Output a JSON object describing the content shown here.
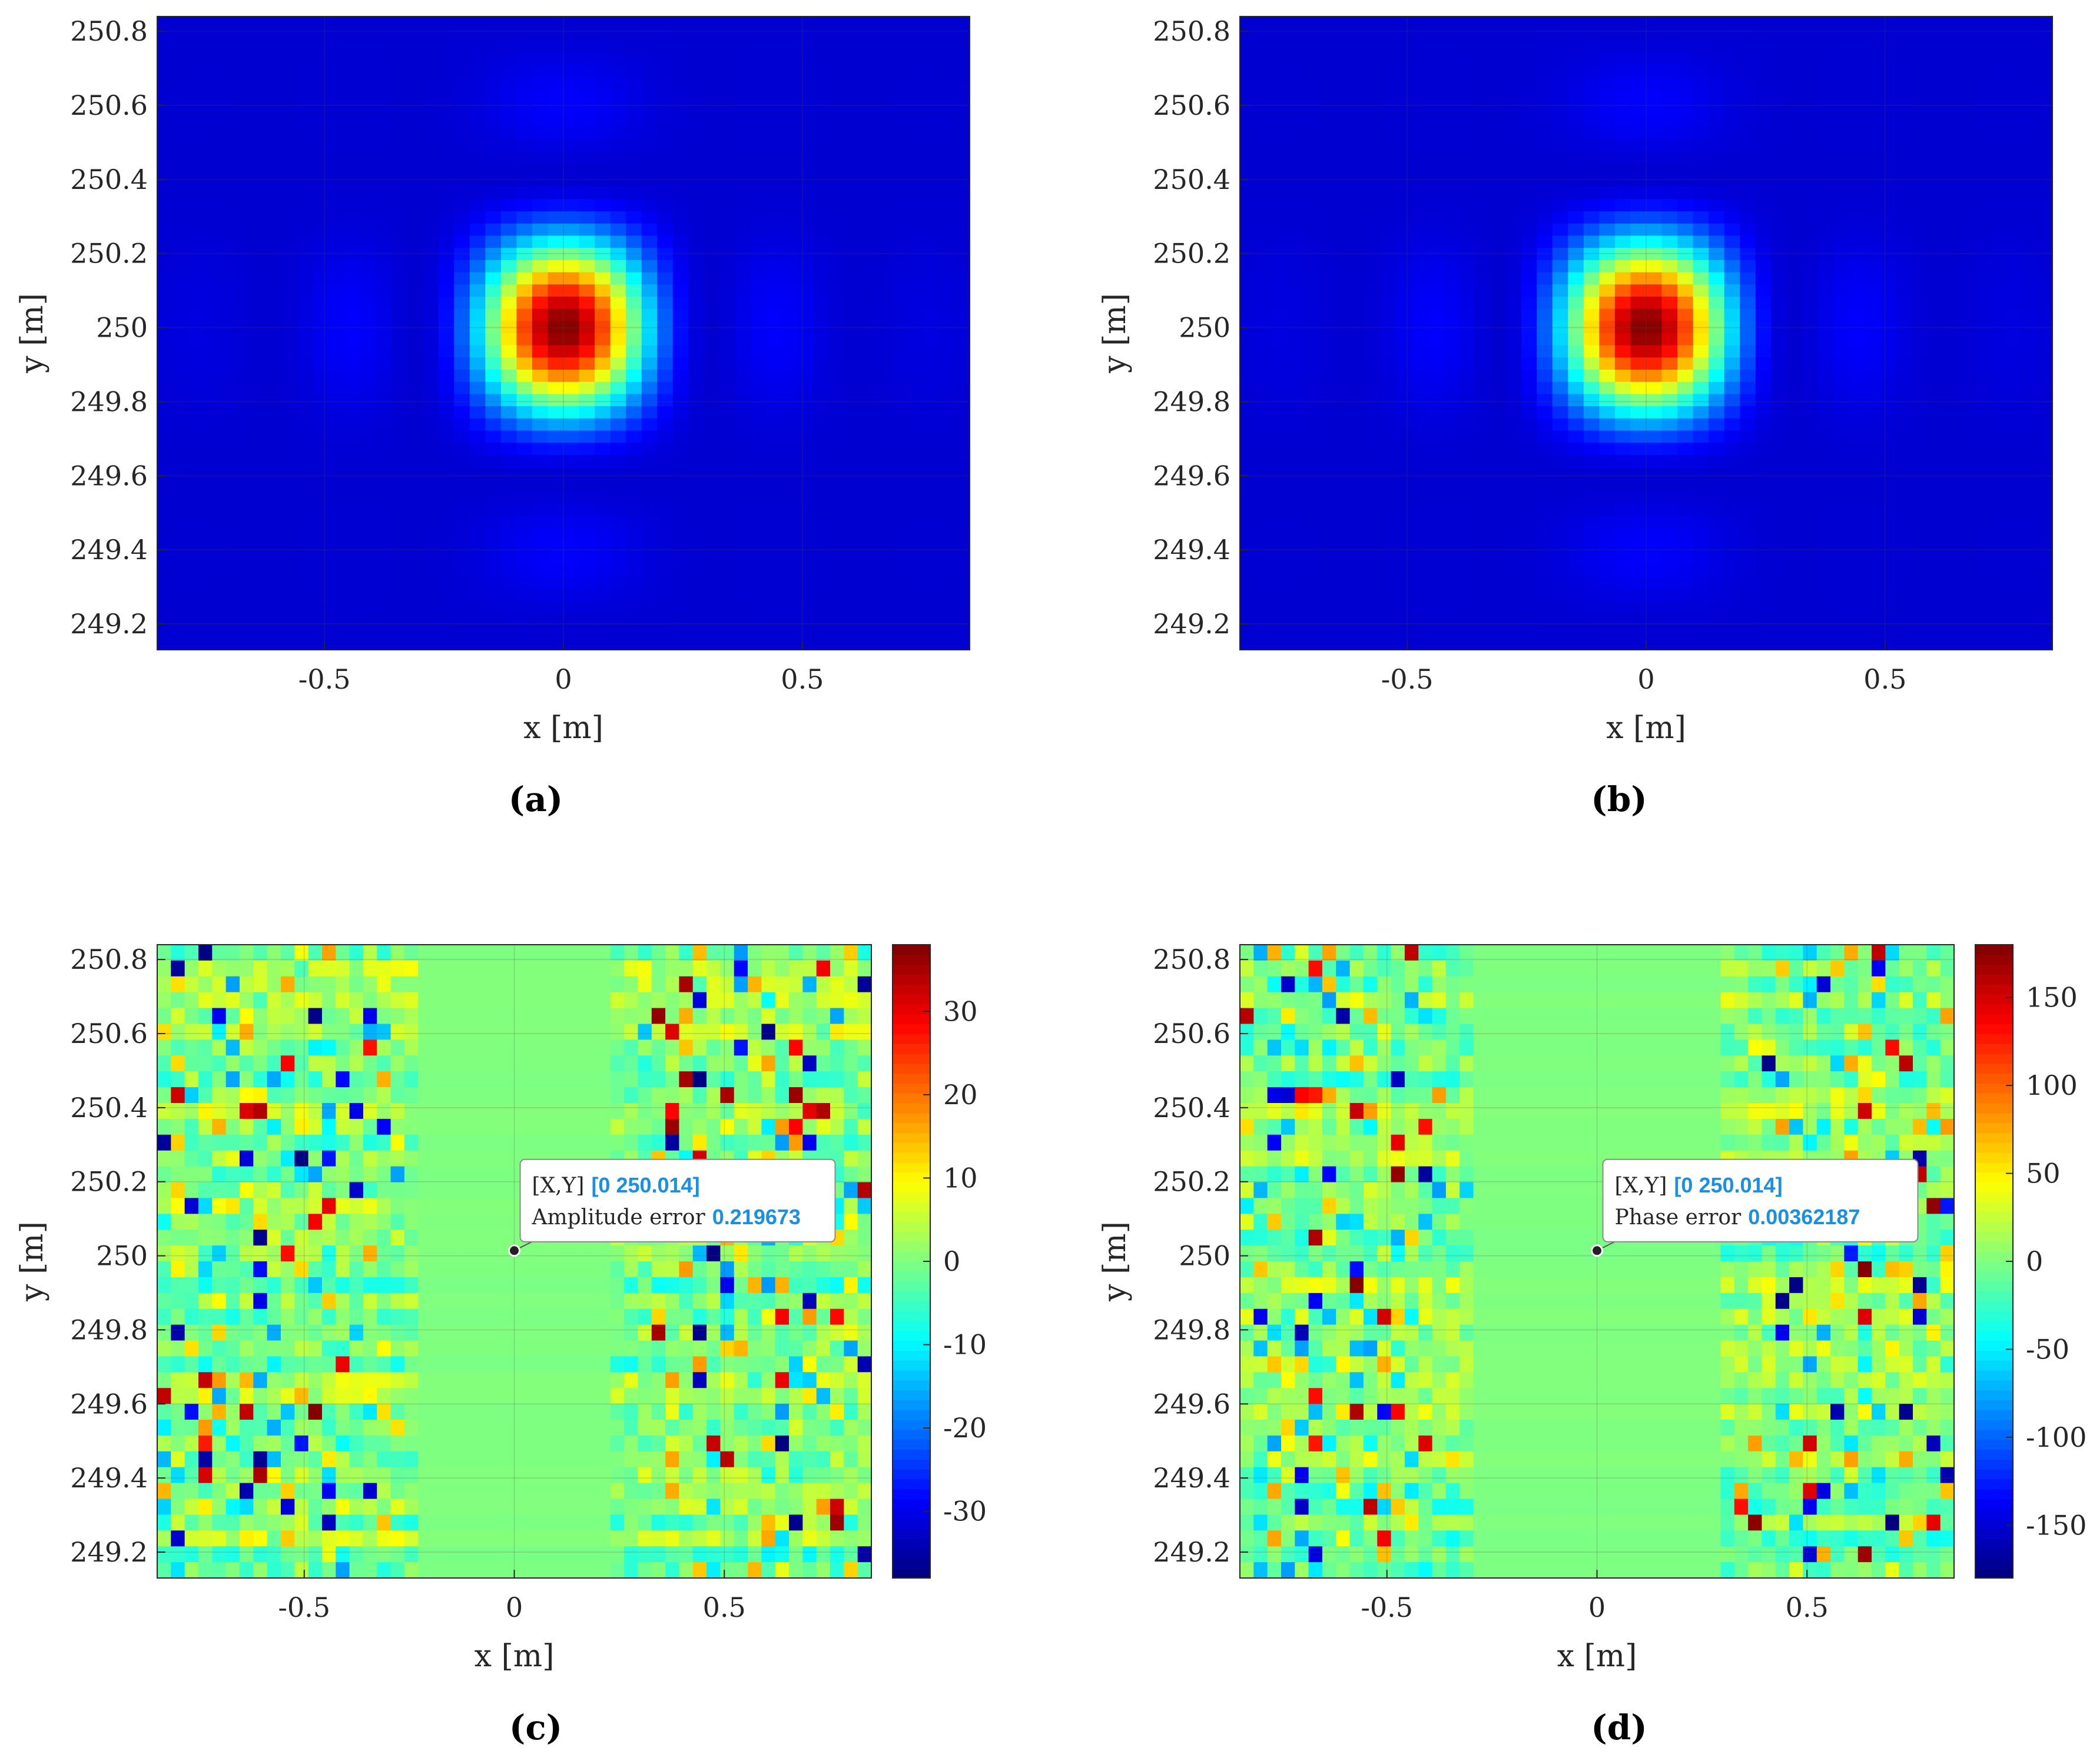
{
  "chart_data": [
    {
      "panel": "a",
      "caption": "(a)",
      "type": "heatmap",
      "xlabel": "x [m]",
      "ylabel": "y [m]",
      "xlim": [
        -0.85,
        0.85
      ],
      "ylim": [
        249.13,
        250.84
      ],
      "xticks": [
        -0.5,
        0,
        0.5
      ],
      "xtick_labels": [
        "-0.5",
        "0",
        "0.5"
      ],
      "yticks": [
        249.2,
        249.4,
        249.6,
        249.8,
        250,
        250.2,
        250.4,
        250.6,
        250.8
      ],
      "ytick_labels": [
        "249.2",
        "249.4",
        "249.6",
        "249.8",
        "250",
        "250.2",
        "250.4",
        "250.6",
        "250.8"
      ],
      "colormap": "jet",
      "field": {
        "kind": "sinc2",
        "center_x": 0,
        "center_y": 250,
        "scale_x": 0.31,
        "scale_y": 0.42
      },
      "grid": {
        "nx": 52,
        "ny": 52
      }
    },
    {
      "panel": "b",
      "caption": "(b)",
      "type": "heatmap",
      "xlabel": "x [m]",
      "ylabel": "y [m]",
      "xlim": [
        -0.85,
        0.85
      ],
      "ylim": [
        249.13,
        250.84
      ],
      "xticks": [
        -0.5,
        0,
        0.5
      ],
      "xtick_labels": [
        "-0.5",
        "0",
        "0.5"
      ],
      "yticks": [
        249.2,
        249.4,
        249.6,
        249.8,
        250,
        250.2,
        250.4,
        250.6,
        250.8
      ],
      "ytick_labels": [
        "249.2",
        "249.4",
        "249.6",
        "249.8",
        "250",
        "250.2",
        "250.4",
        "250.6",
        "250.8"
      ],
      "colormap": "jet",
      "field": {
        "kind": "sinc2",
        "center_x": 0,
        "center_y": 250,
        "scale_x": 0.31,
        "scale_y": 0.42
      },
      "grid": {
        "nx": 52,
        "ny": 52
      }
    },
    {
      "panel": "c",
      "caption": "(c)",
      "type": "heatmap",
      "xlabel": "x [m]",
      "ylabel": "y [m]",
      "xlim": [
        -0.85,
        0.85
      ],
      "ylim": [
        249.13,
        250.84
      ],
      "xticks": [
        -0.5,
        0,
        0.5
      ],
      "xtick_labels": [
        "-0.5",
        "0",
        "0.5"
      ],
      "yticks": [
        249.2,
        249.4,
        249.6,
        249.8,
        250,
        250.2,
        250.4,
        250.6,
        250.8
      ],
      "ytick_labels": [
        "249.2",
        "249.4",
        "249.6",
        "249.8",
        "250",
        "250.2",
        "250.4",
        "250.6",
        "250.8"
      ],
      "colormap": "jet",
      "clim": [
        -38,
        38
      ],
      "colorbar": {
        "ticks": [
          -30,
          -20,
          -10,
          0,
          10,
          20,
          30
        ],
        "tick_labels": [
          "-30",
          "-20",
          "-10",
          "0",
          "10",
          "20",
          "30"
        ]
      },
      "field": {
        "kind": "error",
        "seed": 7,
        "center_width": 0.22,
        "amplitude": 38
      },
      "grid": {
        "nx": 52,
        "ny": 40
      },
      "datatip": {
        "x": 0,
        "y": 250.014,
        "line1_prefix": "[X,Y]",
        "line1_value": "[0 250.014]",
        "line2_prefix": "Amplitude error",
        "line2_value": "0.219673"
      }
    },
    {
      "panel": "d",
      "caption": "(d)",
      "type": "heatmap",
      "xlabel": "x [m]",
      "ylabel": "y [m]",
      "xlim": [
        -0.85,
        0.85
      ],
      "ylim": [
        249.13,
        250.84
      ],
      "xticks": [
        -0.5,
        0,
        0.5
      ],
      "xtick_labels": [
        "-0.5",
        "0",
        "0.5"
      ],
      "yticks": [
        249.2,
        249.4,
        249.6,
        249.8,
        250,
        250.2,
        250.4,
        250.6,
        250.8
      ],
      "ytick_labels": [
        "249.2",
        "249.4",
        "249.6",
        "249.8",
        "250",
        "250.2",
        "250.4",
        "250.6",
        "250.8"
      ],
      "colormap": "jet",
      "clim": [
        -180,
        180
      ],
      "colorbar": {
        "ticks": [
          -150,
          -100,
          -50,
          0,
          50,
          100,
          150
        ],
        "tick_labels": [
          "-150",
          "-100",
          "-50",
          "0",
          "50",
          "100",
          "150"
        ]
      },
      "field": {
        "kind": "error",
        "seed": 13,
        "center_width": 0.3,
        "amplitude": 180
      },
      "grid": {
        "nx": 52,
        "ny": 40
      },
      "datatip": {
        "x": 0,
        "y": 250.014,
        "line1_prefix": "[X,Y]",
        "line1_value": "[0 250.014]",
        "line2_prefix": "Phase error",
        "line2_value": "0.00362187"
      }
    }
  ]
}
